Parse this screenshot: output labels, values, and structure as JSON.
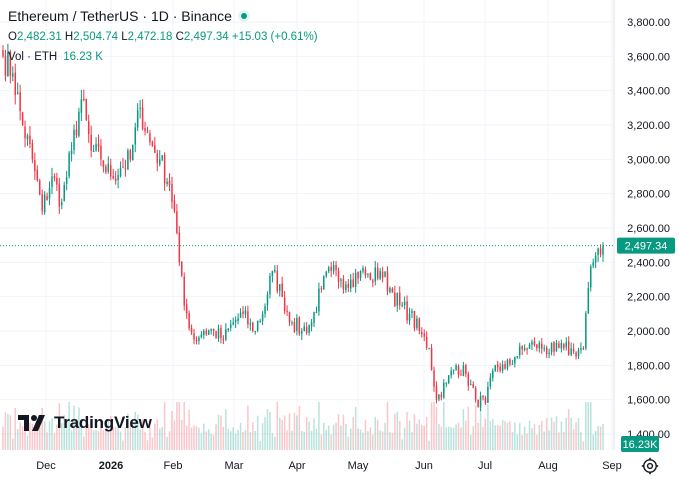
{
  "header": {
    "symbol": "Ethereum / TetherUS",
    "interval": "1D",
    "exchange": "Binance",
    "title_sep": " · ",
    "ohlc": {
      "o_label": "O",
      "o": "2,482.31",
      "h_label": "H",
      "h": "2,504.74",
      "l_label": "L",
      "l": "2,472.18",
      "c_label": "C",
      "c": "2,497.34",
      "change": "+15.03 (+0.61%)"
    },
    "volume_label": "Vol · ETH",
    "volume_value": "16.23 K"
  },
  "branding": {
    "logo_text": "TradingView"
  },
  "price_axis": {
    "ticks": [
      "3,800.00",
      "3,600.00",
      "3,400.00",
      "3,200.00",
      "3,000.00",
      "2,800.00",
      "2,600.00",
      "2,400.00",
      "2,200.00",
      "2,000.00",
      "1,800.00",
      "1,600.00",
      "1,400.00"
    ],
    "last_price_label": "2,497.34",
    "volume_badge": "16.23K"
  },
  "time_axis": {
    "labels": [
      "Dec",
      "2026",
      "Feb",
      "Mar",
      "Apr",
      "May",
      "Jun",
      "Jul",
      "Aug",
      "Sep"
    ]
  },
  "colors": {
    "up": "#089981",
    "down": "#f23645",
    "grid": "#f0f3fa",
    "text": "#131722"
  },
  "icons": {
    "settings": "gear-icon",
    "live": "live-status-dot",
    "logo": "tradingview-logo-icon"
  },
  "chart_data": {
    "type": "candlestick",
    "title": "Ethereum / TetherUS · 1D · Binance",
    "xlabel": "",
    "ylabel": "",
    "ylim": [
      1360,
      3880
    ],
    "grid": true,
    "x_ticks": [
      "Dec",
      "2026",
      "Feb",
      "Mar",
      "Apr",
      "May",
      "Jun",
      "Jul",
      "Aug",
      "Sep"
    ],
    "last_close": 2497.34,
    "anchors": [
      {
        "day": 0,
        "price": 3600
      },
      {
        "day": 4,
        "price": 3500
      },
      {
        "day": 8,
        "price": 3200
      },
      {
        "day": 12,
        "price": 3000
      },
      {
        "day": 16,
        "price": 2700
      },
      {
        "day": 20,
        "price": 2900
      },
      {
        "day": 24,
        "price": 2750
      },
      {
        "day": 28,
        "price": 3050
      },
      {
        "day": 32,
        "price": 3350
      },
      {
        "day": 36,
        "price": 3050
      },
      {
        "day": 40,
        "price": 3000
      },
      {
        "day": 44,
        "price": 2900
      },
      {
        "day": 48,
        "price": 2950
      },
      {
        "day": 52,
        "price": 3000
      },
      {
        "day": 56,
        "price": 3300
      },
      {
        "day": 60,
        "price": 3100
      },
      {
        "day": 64,
        "price": 3000
      },
      {
        "day": 68,
        "price": 2850
      },
      {
        "day": 70,
        "price": 2700
      },
      {
        "day": 72,
        "price": 2400
      },
      {
        "day": 74,
        "price": 2150
      },
      {
        "day": 78,
        "price": 1950
      },
      {
        "day": 82,
        "price": 2000
      },
      {
        "day": 86,
        "price": 2000
      },
      {
        "day": 90,
        "price": 1950
      },
      {
        "day": 94,
        "price": 2050
      },
      {
        "day": 98,
        "price": 2100
      },
      {
        "day": 102,
        "price": 2000
      },
      {
        "day": 106,
        "price": 2100
      },
      {
        "day": 110,
        "price": 2350
      },
      {
        "day": 114,
        "price": 2200
      },
      {
        "day": 118,
        "price": 2050
      },
      {
        "day": 122,
        "price": 2000
      },
      {
        "day": 126,
        "price": 2050
      },
      {
        "day": 130,
        "price": 2250
      },
      {
        "day": 134,
        "price": 2350
      },
      {
        "day": 138,
        "price": 2300
      },
      {
        "day": 142,
        "price": 2300
      },
      {
        "day": 146,
        "price": 2350
      },
      {
        "day": 150,
        "price": 2300
      },
      {
        "day": 154,
        "price": 2350
      },
      {
        "day": 158,
        "price": 2250
      },
      {
        "day": 162,
        "price": 2150
      },
      {
        "day": 166,
        "price": 2100
      },
      {
        "day": 170,
        "price": 2000
      },
      {
        "day": 174,
        "price": 1900
      },
      {
        "day": 177,
        "price": 1600
      },
      {
        "day": 181,
        "price": 1700
      },
      {
        "day": 185,
        "price": 1800
      },
      {
        "day": 189,
        "price": 1750
      },
      {
        "day": 193,
        "price": 1600
      },
      {
        "day": 197,
        "price": 1580
      },
      {
        "day": 201,
        "price": 1800
      },
      {
        "day": 205,
        "price": 1780
      },
      {
        "day": 209,
        "price": 1850
      },
      {
        "day": 213,
        "price": 1900
      },
      {
        "day": 217,
        "price": 1920
      },
      {
        "day": 221,
        "price": 1900
      },
      {
        "day": 225,
        "price": 1880
      },
      {
        "day": 229,
        "price": 1900
      },
      {
        "day": 233,
        "price": 1880
      },
      {
        "day": 237,
        "price": 1900
      },
      {
        "day": 239,
        "price": 2250
      },
      {
        "day": 241,
        "price": 2400
      },
      {
        "day": 243,
        "price": 2480
      },
      {
        "day": 245,
        "price": 2497.34
      }
    ]
  }
}
